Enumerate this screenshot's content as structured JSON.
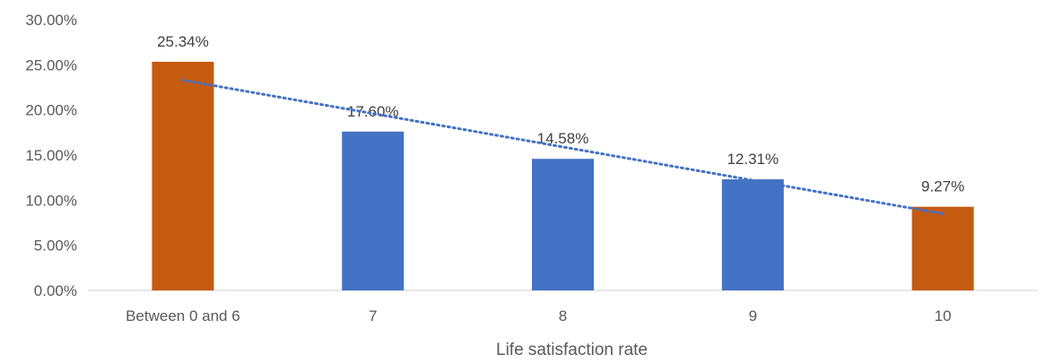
{
  "chart_data": {
    "type": "bar",
    "title": "",
    "xlabel": "Life satisfaction rate",
    "ylabel": "",
    "categories": [
      "Between 0 and 6",
      "7",
      "8",
      "9",
      "10"
    ],
    "values": [
      25.34,
      17.6,
      14.58,
      12.31,
      9.27
    ],
    "value_labels": [
      "25.34%",
      "17.60%",
      "14.58%",
      "12.31%",
      "9.27%"
    ],
    "bar_colors": [
      "#c55a11",
      "#4472c4",
      "#4472c4",
      "#4472c4",
      "#c55a11"
    ],
    "ylim": [
      0,
      30
    ],
    "yticks": [
      0,
      5,
      10,
      15,
      20,
      25,
      30
    ],
    "ytick_labels": [
      "0.00%",
      "5.00%",
      "10.00%",
      "15.00%",
      "20.00%",
      "25.00%",
      "30.00%"
    ],
    "grid": false,
    "legend": "none",
    "trendline": {
      "type": "linear",
      "style": "dotted",
      "color": "#4472c4",
      "start_value": 23.3,
      "end_value": 8.5
    }
  }
}
